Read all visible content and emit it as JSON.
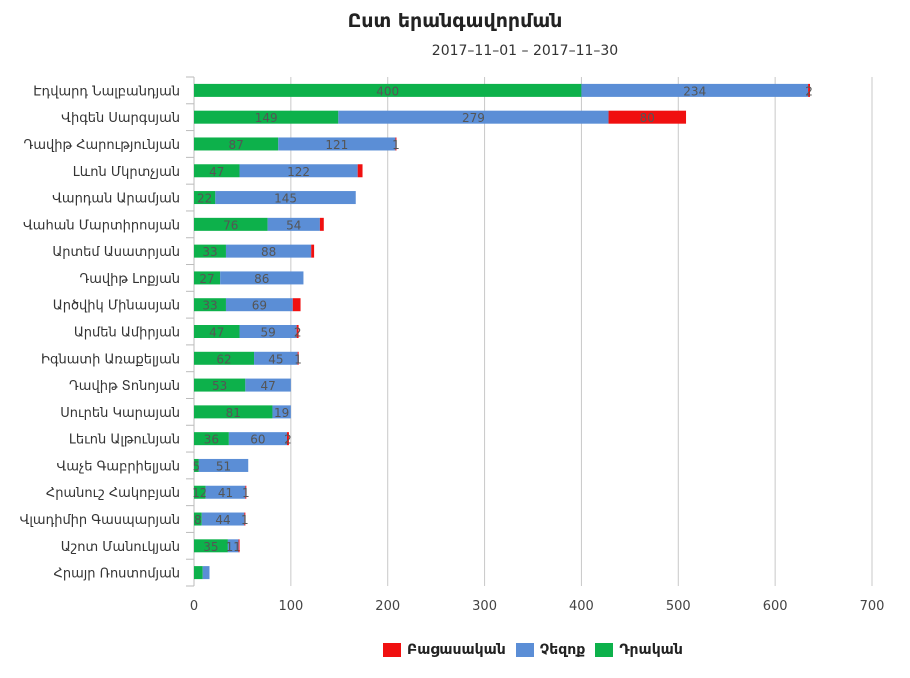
{
  "chart_data": {
    "type": "bar",
    "orientation": "horizontal",
    "stacked": true,
    "title": "Ըստ երանգավորման",
    "subtitle": "2017–11–01 – 2017–11–30",
    "categories": [
      "Էդվարդ Նալբանդյան",
      "Վիգեն Սարգսյան",
      "Դավիթ Հարությունյան",
      "Լևոն Մկրտչյան",
      "Վարդան Արամյան",
      "Վահան Մարտիրոսյան",
      "Արտեմ Ասատրյան",
      "Դավիթ Լոքյան",
      "Արծվիկ Մինասյան",
      "Արմեն Ամիրյան",
      "Իգնատի Առաքելյան",
      "Դավիթ Տոնոյան",
      "Սուրեն Կարայան",
      "Լեւոն Ալթունյան",
      "Վաչե Գաբրիելյան",
      "Հրանուշ Հակոբյան",
      "Վլադիմիր Գասպարյան",
      "Աշոտ Մանուկյան",
      "Հրայր Ռոստոմյան"
    ],
    "series": [
      {
        "name": "Դրական",
        "color": "#0db14b",
        "values": [
          400,
          149,
          87,
          47,
          22,
          76,
          33,
          27,
          33,
          47,
          62,
          53,
          81,
          36,
          5,
          12,
          8,
          35,
          9
        ]
      },
      {
        "name": "Չեզոք",
        "color": "#5b8ed6",
        "values": [
          234,
          279,
          121,
          122,
          145,
          54,
          88,
          86,
          69,
          59,
          45,
          47,
          19,
          60,
          51,
          41,
          44,
          11,
          7
        ]
      },
      {
        "name": "Բացասական",
        "color": "#f01010",
        "values": [
          2,
          80,
          1,
          5,
          0,
          4,
          3,
          0,
          8,
          2,
          1,
          0,
          0,
          2,
          0,
          1,
          1,
          1,
          0
        ]
      }
    ],
    "value_labels": [
      [
        "400",
        "234",
        "2"
      ],
      [
        "149",
        "279",
        "80"
      ],
      [
        "87",
        "121",
        "1"
      ],
      [
        "47",
        "122",
        ""
      ],
      [
        "22",
        "145",
        ""
      ],
      [
        "76",
        "54",
        ""
      ],
      [
        "33",
        "88",
        ""
      ],
      [
        "27",
        "86",
        ""
      ],
      [
        "33",
        "69",
        ""
      ],
      [
        "47",
        "59",
        "2"
      ],
      [
        "62",
        "45",
        "1"
      ],
      [
        "53",
        "47",
        ""
      ],
      [
        "81",
        "19",
        ""
      ],
      [
        "36",
        "60",
        "2"
      ],
      [
        "5",
        "51",
        ""
      ],
      [
        "12",
        "41",
        "1"
      ],
      [
        "8",
        "44",
        "1"
      ],
      [
        "35",
        "11",
        ""
      ],
      [
        "",
        "",
        ""
      ]
    ],
    "xlim": [
      0,
      700
    ],
    "xticks": [
      "0",
      "100",
      "200",
      "300",
      "400",
      "500",
      "600",
      "700"
    ],
    "grid": true,
    "legend_position": "bottom",
    "legend_order": [
      "Բացասական",
      "Չեզոք",
      "Դրական"
    ]
  }
}
